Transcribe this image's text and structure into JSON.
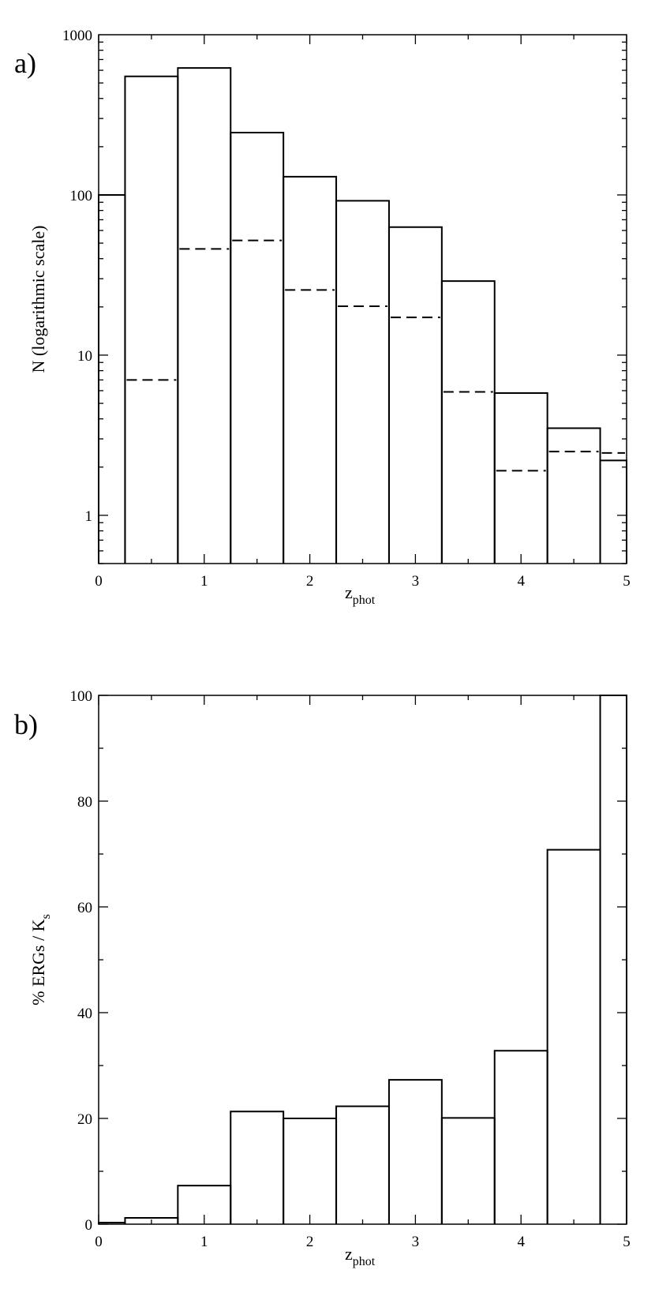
{
  "chart_data": [
    {
      "type": "bar",
      "panel_label": "a)",
      "xlabel": {
        "main": "z",
        "sub": "phot"
      },
      "ylabel": "N (logarithmic scale)",
      "xlim": [
        0,
        5
      ],
      "ylim": [
        0.5,
        1000
      ],
      "yscale": "log",
      "bin_edges": [
        0,
        0.25,
        0.75,
        1.25,
        1.75,
        2.25,
        2.75,
        3.25,
        3.75,
        4.25,
        4.75,
        5
      ],
      "x_ticks": [
        "0",
        "1",
        "2",
        "3",
        "4",
        "5"
      ],
      "y_ticks": [
        "1",
        "10",
        "100",
        "1000"
      ],
      "series": [
        {
          "style": "solid",
          "values": [
            100,
            550,
            620,
            245,
            130,
            92,
            63,
            29,
            5.8,
            3.5,
            2.2
          ]
        },
        {
          "style": "dashed",
          "values": [
            null,
            7.0,
            46,
            52,
            25.5,
            20.2,
            17.2,
            5.9,
            1.9,
            2.5,
            2.45
          ]
        }
      ]
    },
    {
      "type": "bar",
      "panel_label": "b)",
      "xlabel": {
        "main": "z",
        "sub": "phot"
      },
      "ylabel": {
        "main": "%  ERGs / K",
        "sub": "s"
      },
      "xlim": [
        0,
        5
      ],
      "ylim": [
        0,
        100
      ],
      "bin_edges": [
        0,
        0.25,
        0.75,
        1.25,
        1.75,
        2.25,
        2.75,
        3.25,
        3.75,
        4.25,
        4.75,
        5
      ],
      "x_ticks": [
        "0",
        "1",
        "2",
        "3",
        "4",
        "5"
      ],
      "y_ticks": [
        "0",
        "20",
        "40",
        "60",
        "80",
        "100"
      ],
      "series": [
        {
          "style": "solid",
          "values": [
            0.3,
            1.2,
            7.3,
            21.3,
            20.0,
            22.3,
            27.3,
            20.1,
            32.8,
            70.8,
            100
          ]
        }
      ]
    }
  ]
}
